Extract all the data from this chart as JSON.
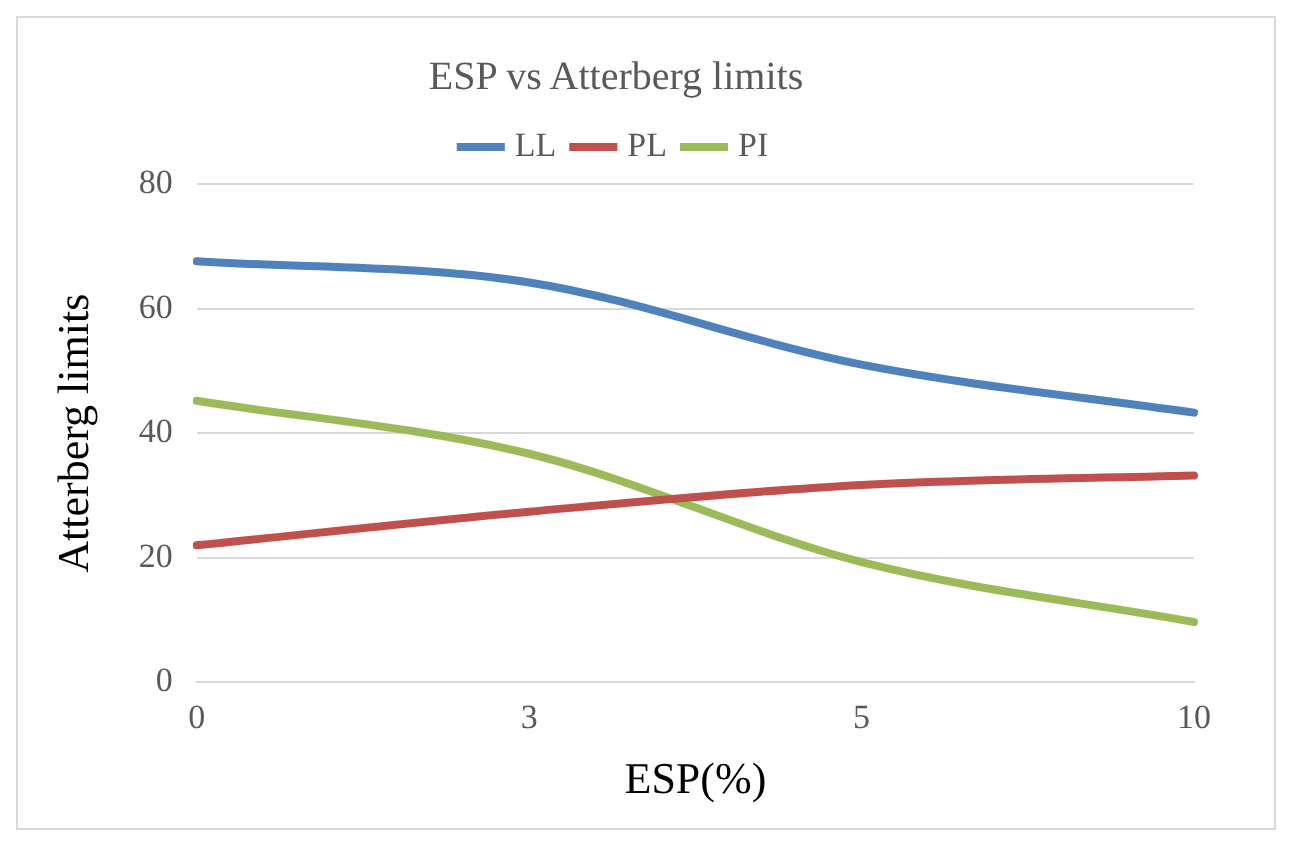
{
  "chart_data": {
    "type": "line",
    "title": "ESP vs Atterberg limits",
    "xlabel": "ESP(%)",
    "ylabel": "Atterberg limits",
    "categories": [
      "0",
      "3",
      "5",
      "10"
    ],
    "series": [
      {
        "name": "LL",
        "color": "#4f81bd",
        "values": [
          67.6,
          64.2,
          51,
          43.3
        ]
      },
      {
        "name": "PL",
        "color": "#c0504d",
        "values": [
          22,
          27.4,
          31.7,
          33.2
        ]
      },
      {
        "name": "PI",
        "color": "#9bbb59",
        "values": [
          45.2,
          36.7,
          19.3,
          9.7
        ]
      }
    ],
    "ylim": [
      0,
      80
    ],
    "yticks": [
      0,
      20,
      40,
      60,
      80
    ],
    "grid": "y",
    "legend": "top",
    "marker": "none"
  }
}
